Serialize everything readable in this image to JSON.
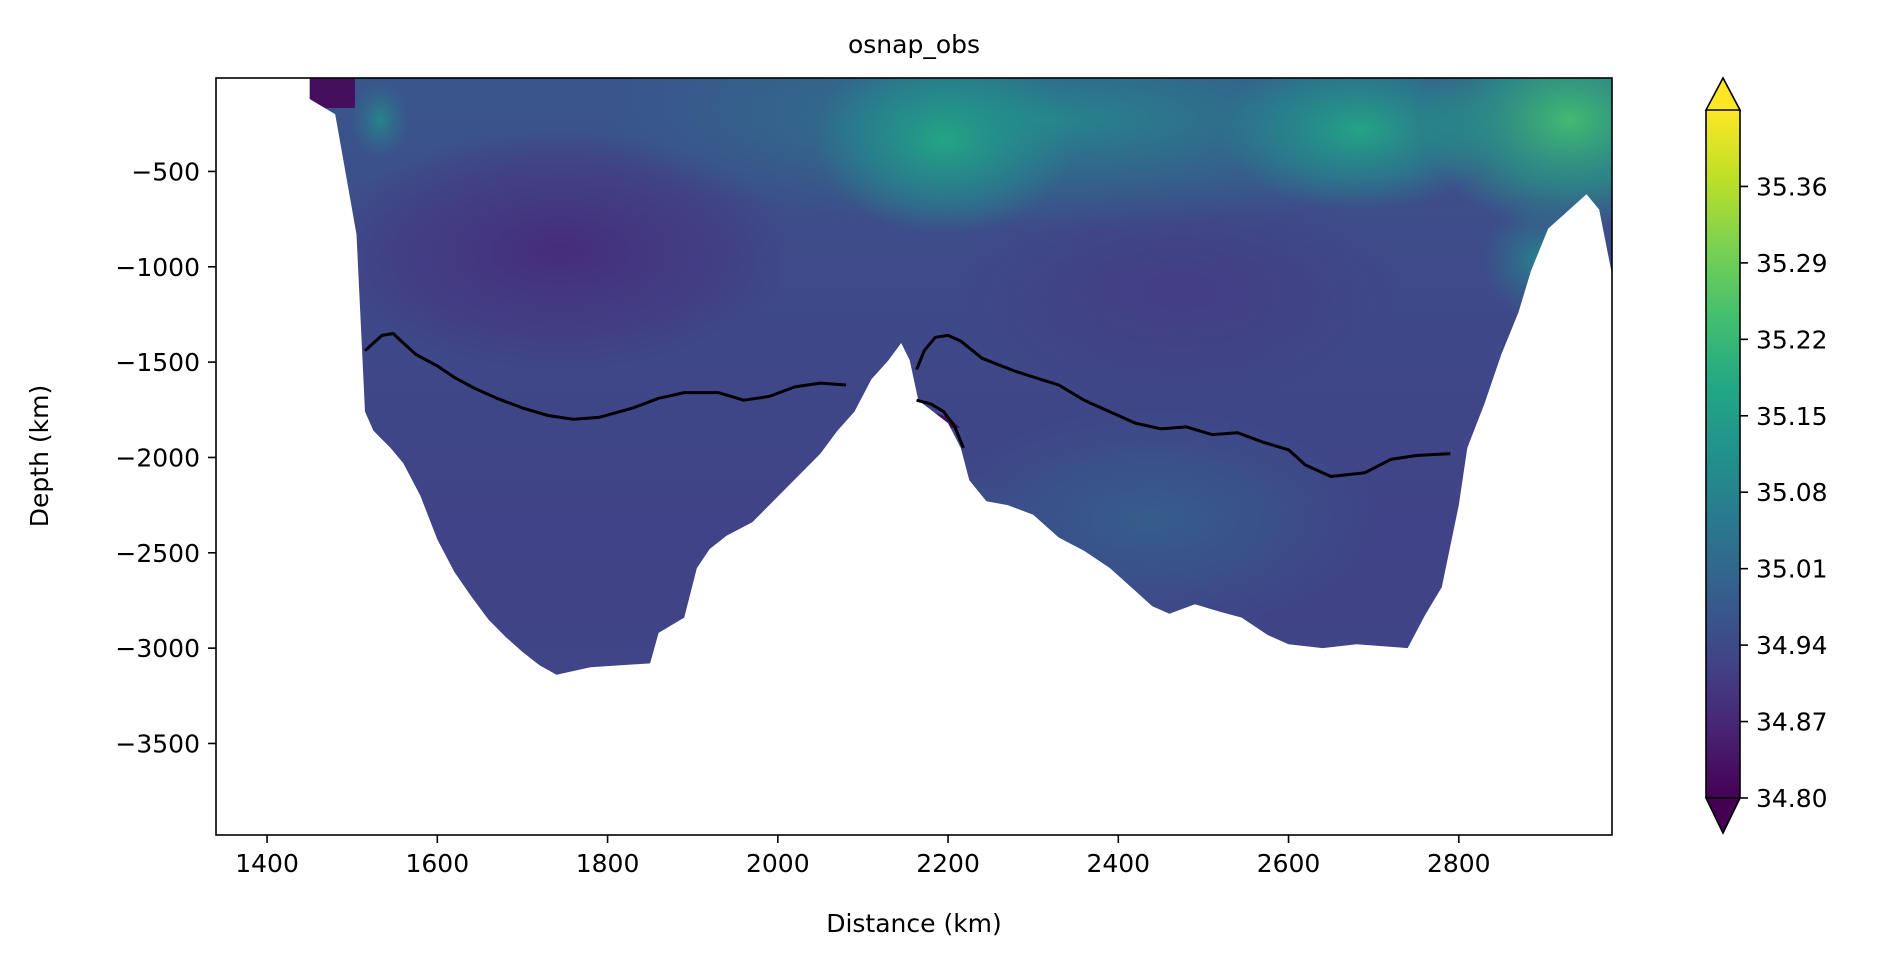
{
  "chart_data": {
    "type": "heatmap",
    "title": "osnap_obs",
    "xlabel": "Distance (km)",
    "ylabel": "Depth (km)",
    "xlim": [
      1340,
      2980
    ],
    "ylim": [
      -3980,
      -10
    ],
    "x_ticks": [
      1400,
      1600,
      1800,
      2000,
      2200,
      2400,
      2600,
      2800
    ],
    "y_ticks": [
      -500,
      -1000,
      -1500,
      -2000,
      -2500,
      -3000,
      -3500
    ],
    "x_tick_labels": [
      "1400",
      "1600",
      "1800",
      "2000",
      "2200",
      "2400",
      "2600",
      "2800"
    ],
    "y_tick_labels": [
      "−500",
      "−1000",
      "−1500",
      "−2000",
      "−2500",
      "−3000",
      "−3500"
    ],
    "colorbar": {
      "colormap": "viridis",
      "vmin": 34.8,
      "vmax": 35.43,
      "extend": "both",
      "ticks": [
        34.8,
        34.87,
        34.94,
        35.01,
        35.08,
        35.15,
        35.22,
        35.29,
        35.36
      ],
      "tick_labels": [
        "34.80",
        "34.87",
        "34.94",
        "35.01",
        "35.08",
        "35.15",
        "35.22",
        "35.29",
        "35.36"
      ]
    },
    "bathymetry_profile": [
      [
        1450,
        -120
      ],
      [
        1480,
        -200
      ],
      [
        1505,
        -830
      ],
      [
        1515,
        -1760
      ],
      [
        1525,
        -1860
      ],
      [
        1545,
        -1950
      ],
      [
        1560,
        -2030
      ],
      [
        1580,
        -2200
      ],
      [
        1600,
        -2430
      ],
      [
        1620,
        -2600
      ],
      [
        1640,
        -2730
      ],
      [
        1660,
        -2850
      ],
      [
        1680,
        -2940
      ],
      [
        1700,
        -3020
      ],
      [
        1720,
        -3090
      ],
      [
        1740,
        -3140
      ],
      [
        1760,
        -3120
      ],
      [
        1780,
        -3100
      ],
      [
        1850,
        -3080
      ],
      [
        1860,
        -2920
      ],
      [
        1890,
        -2840
      ],
      [
        1905,
        -2580
      ],
      [
        1920,
        -2480
      ],
      [
        1940,
        -2410
      ],
      [
        1970,
        -2340
      ],
      [
        1990,
        -2250
      ],
      [
        2010,
        -2160
      ],
      [
        2050,
        -1980
      ],
      [
        2070,
        -1860
      ],
      [
        2090,
        -1760
      ],
      [
        2110,
        -1590
      ],
      [
        2130,
        -1490
      ],
      [
        2145,
        -1400
      ],
      [
        2155,
        -1490
      ],
      [
        2165,
        -1700
      ],
      [
        2200,
        -1820
      ],
      [
        2215,
        -1950
      ],
      [
        2225,
        -2120
      ],
      [
        2245,
        -2230
      ],
      [
        2270,
        -2250
      ],
      [
        2300,
        -2300
      ],
      [
        2330,
        -2420
      ],
      [
        2360,
        -2490
      ],
      [
        2390,
        -2580
      ],
      [
        2420,
        -2700
      ],
      [
        2440,
        -2780
      ],
      [
        2460,
        -2820
      ],
      [
        2490,
        -2770
      ],
      [
        2520,
        -2810
      ],
      [
        2545,
        -2840
      ],
      [
        2575,
        -2930
      ],
      [
        2600,
        -2980
      ],
      [
        2640,
        -3000
      ],
      [
        2680,
        -2980
      ],
      [
        2740,
        -3000
      ],
      [
        2760,
        -2830
      ],
      [
        2780,
        -2680
      ],
      [
        2800,
        -2250
      ],
      [
        2810,
        -1950
      ],
      [
        2830,
        -1720
      ],
      [
        2850,
        -1460
      ],
      [
        2870,
        -1240
      ],
      [
        2885,
        -1020
      ],
      [
        2905,
        -800
      ],
      [
        2925,
        -720
      ],
      [
        2950,
        -620
      ],
      [
        2965,
        -700
      ],
      [
        2980,
        -1040
      ]
    ],
    "series": [
      {
        "points": [
          [
            1515,
            -1440
          ],
          [
            1525,
            -1400
          ],
          [
            1535,
            -1360
          ],
          [
            1548,
            -1350
          ],
          [
            1560,
            -1400
          ],
          [
            1575,
            -1460
          ],
          [
            1600,
            -1520
          ],
          [
            1620,
            -1580
          ],
          [
            1645,
            -1640
          ],
          [
            1670,
            -1690
          ],
          [
            1700,
            -1740
          ],
          [
            1730,
            -1780
          ],
          [
            1760,
            -1800
          ],
          [
            1790,
            -1790
          ],
          [
            1830,
            -1740
          ],
          [
            1860,
            -1690
          ],
          [
            1890,
            -1660
          ],
          [
            1930,
            -1660
          ],
          [
            1960,
            -1700
          ],
          [
            1990,
            -1680
          ],
          [
            2020,
            -1630
          ],
          [
            2050,
            -1610
          ],
          [
            2080,
            -1620
          ]
        ]
      },
      {
        "points": [
          [
            2163,
            -1540
          ],
          [
            2172,
            -1440
          ],
          [
            2185,
            -1370
          ],
          [
            2200,
            -1360
          ],
          [
            2215,
            -1390
          ],
          [
            2240,
            -1480
          ],
          [
            2280,
            -1550
          ],
          [
            2330,
            -1620
          ],
          [
            2360,
            -1700
          ],
          [
            2390,
            -1760
          ],
          [
            2420,
            -1820
          ],
          [
            2450,
            -1850
          ],
          [
            2480,
            -1840
          ],
          [
            2510,
            -1880
          ],
          [
            2540,
            -1870
          ],
          [
            2570,
            -1920
          ],
          [
            2600,
            -1960
          ],
          [
            2620,
            -2040
          ],
          [
            2650,
            -2100
          ],
          [
            2690,
            -2080
          ],
          [
            2720,
            -2010
          ],
          [
            2750,
            -1990
          ],
          [
            2790,
            -1980
          ]
        ]
      },
      {
        "points": [
          [
            2163,
            -1700
          ],
          [
            2180,
            -1720
          ],
          [
            2195,
            -1760
          ],
          [
            2208,
            -1840
          ],
          [
            2218,
            -1950
          ]
        ]
      }
    ]
  }
}
